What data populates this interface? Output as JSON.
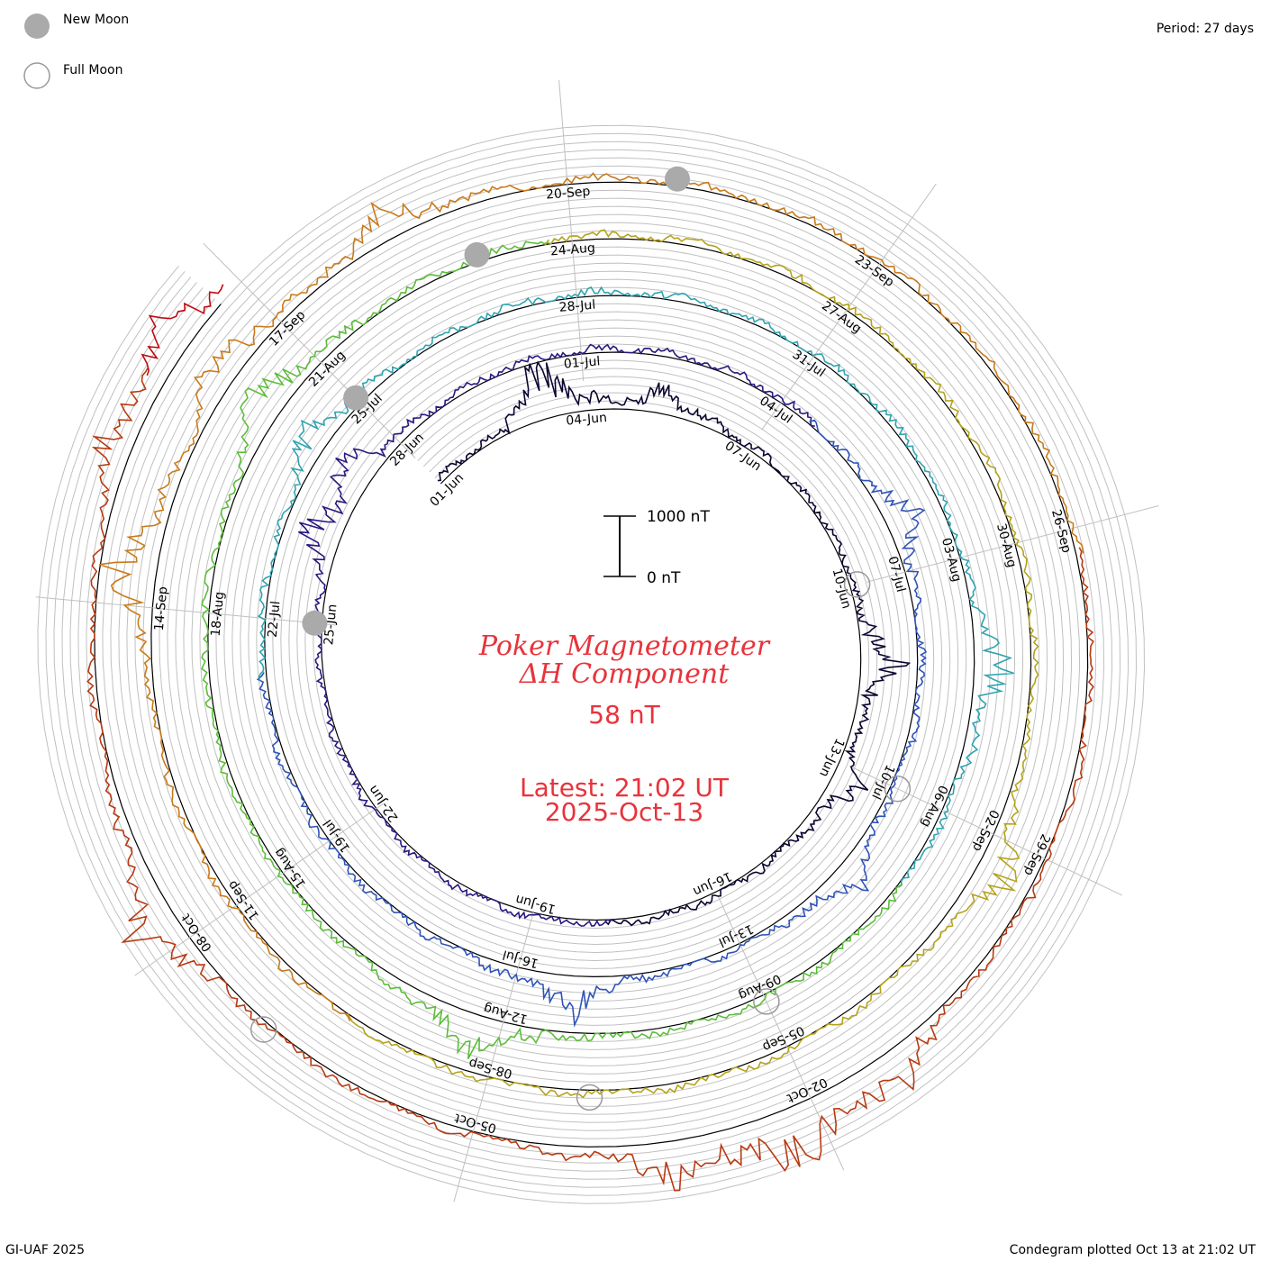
{
  "legend": {
    "new_moon": "New Moon",
    "full_moon": "Full Moon"
  },
  "header": {
    "period": "Period: 27 days"
  },
  "footer": {
    "credit": "GI-UAF 2025",
    "plotted": "Condegram plotted Oct 13 at 21:02 UT"
  },
  "title": {
    "line1": "Poker Magnetometer",
    "line2": "ΔH Component",
    "value": "58 nT",
    "latest": "Latest: 21:02 UT",
    "date": "2025-Oct-13"
  },
  "scale": {
    "top": "1000 nT",
    "bottom": "0 nT"
  },
  "colors": {
    "title": "#e8333b",
    "grid": "#c0c0c0",
    "moon_new": "#aaaaaa",
    "moon_full": "#999999"
  },
  "chart_data": {
    "type": "condegram",
    "title": "Poker Magnetometer ΔH Component",
    "period_days": 27,
    "start_date": "2025-06-01",
    "end_date": "2025-10-13",
    "latest_value_nT": 58,
    "scale_nT": [
      0,
      1000
    ],
    "date_labels": [
      "01-Jun",
      "04-Jun",
      "07-Jun",
      "10-Jun",
      "13-Jun",
      "16-Jun",
      "19-Jun",
      "22-Jun",
      "25-Jun",
      "28-Jun",
      "01-Jul",
      "04-Jul",
      "07-Jul",
      "10-Jul",
      "13-Jul",
      "16-Jul",
      "19-Jul",
      "22-Jul",
      "25-Jul",
      "28-Jul",
      "31-Jul",
      "03-Aug",
      "06-Aug",
      "09-Aug",
      "12-Aug",
      "15-Aug",
      "18-Aug",
      "21-Aug",
      "24-Aug",
      "27-Aug",
      "30-Aug",
      "02-Sep",
      "05-Sep",
      "08-Sep",
      "11-Sep",
      "14-Sep",
      "17-Sep",
      "20-Sep",
      "23-Sep",
      "26-Sep",
      "29-Sep",
      "02-Oct",
      "05-Oct",
      "08-Oct"
    ],
    "new_moon_days": [
      24,
      54,
      83,
      112
    ],
    "full_moon_days": [
      9,
      39,
      69,
      98,
      128
    ],
    "disturbance_days": [
      {
        "day": 2,
        "amp_nT": 700
      },
      {
        "day": 4,
        "amp_nT": 300
      },
      {
        "day": 10,
        "amp_nT": 450
      },
      {
        "day": 12,
        "amp_nT": 350
      },
      {
        "day": 25,
        "amp_nT": 400
      },
      {
        "day": 26,
        "amp_nT": 350
      },
      {
        "day": 35,
        "amp_nT": 350
      },
      {
        "day": 40,
        "amp_nT": 300
      },
      {
        "day": 44,
        "amp_nT": 450
      },
      {
        "day": 53,
        "amp_nT": 300
      },
      {
        "day": 64,
        "amp_nT": 350
      },
      {
        "day": 72,
        "amp_nT": 400
      },
      {
        "day": 80,
        "amp_nT": 450
      },
      {
        "day": 93,
        "amp_nT": 400
      },
      {
        "day": 105,
        "amp_nT": 500
      },
      {
        "day": 107,
        "amp_nT": 350
      },
      {
        "day": 109,
        "amp_nT": 300
      },
      {
        "day": 122,
        "amp_nT": 450
      },
      {
        "day": 123,
        "amp_nT": 600
      },
      {
        "day": 124,
        "amp_nT": 400
      },
      {
        "day": 129,
        "amp_nT": 500
      },
      {
        "day": 133,
        "amp_nT": 350
      },
      {
        "day": 134,
        "amp_nT": 400
      }
    ],
    "series_colors": [
      "#0d0430",
      "#2a1880",
      "#2f54b8",
      "#2fa3b0",
      "#5cbd3a",
      "#b5a31a",
      "#c87a1a",
      "#b83a12",
      "#c00a10"
    ]
  }
}
